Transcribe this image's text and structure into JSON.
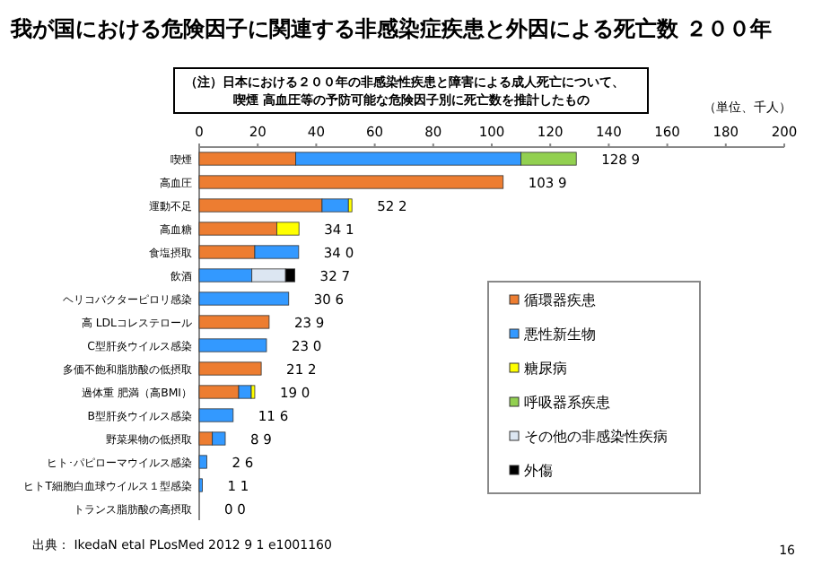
{
  "chart_data": {
    "type": "bar",
    "orientation": "horizontal",
    "stacked": true,
    "title": "我が国における危険因子に関連する非感染症疾患と外因による死亡数 ２００年",
    "subtitle": "（注）日本における２００年の非感染性疾患と障害による成人死亡について、喫煙 高血圧等の予防可能な危険因子別に死亡数を推計したもの",
    "annotations": [
      "（単位、千人）",
      "出典： IkedaN etal PLosMed 2012 9 1 e1001160",
      "16"
    ],
    "categories": [
      "喫煙",
      "高血圧",
      "運動不足",
      "高血糖",
      "食塩摂取",
      "飲酒",
      "ヘリコバクターピロリ感染",
      "高 LDLコレステロール",
      "C型肝炎ウイルス感染",
      "多価不飽和脂肪酸の低摂取",
      "過体重 肥満（高BMI）",
      "B型肝炎ウイルス感染",
      "野菜果物の低摂取",
      "ヒト･パピローマウイルス感染",
      "ヒトT細胞白血球ウイルス１型感染",
      "トランス脂肪酸の高摂取"
    ],
    "series": [
      {
        "name": "循環器疾患",
        "color": "#ed7d31",
        "values": [
          33,
          103.9,
          42,
          26.5,
          19,
          null,
          null,
          23.9,
          null,
          21.2,
          13.5,
          null,
          4.5,
          null,
          null,
          0.0
        ]
      },
      {
        "name": "悪性新生物",
        "color": "#3399ff",
        "values": [
          77,
          null,
          9,
          null,
          15,
          18,
          30.6,
          null,
          23.0,
          null,
          4.3,
          11.6,
          4.4,
          2.6,
          1.1,
          null
        ]
      },
      {
        "name": "糖尿病",
        "color": "#ffff00",
        "values": [
          null,
          null,
          1.2,
          7.6,
          null,
          null,
          null,
          null,
          null,
          null,
          1.2,
          null,
          null,
          null,
          null,
          null
        ]
      },
      {
        "name": "呼吸器系疾患",
        "color": "#92d050",
        "values": [
          18.9,
          null,
          null,
          null,
          null,
          null,
          null,
          null,
          null,
          null,
          null,
          null,
          null,
          null,
          null,
          null
        ]
      },
      {
        "name": "その他の非感染性疾病",
        "color": "#dce6f2",
        "values": [
          null,
          null,
          null,
          null,
          null,
          11.5,
          null,
          null,
          null,
          null,
          null,
          null,
          null,
          null,
          null,
          null
        ]
      },
      {
        "name": "外傷",
        "color": "#000000",
        "values": [
          null,
          null,
          null,
          null,
          null,
          3.2,
          null,
          null,
          null,
          null,
          null,
          null,
          null,
          null,
          null,
          null
        ]
      }
    ],
    "totals": [
      "128 9",
      "103 9",
      "52 2",
      "34 1",
      "34 0",
      "32 7",
      "30 6",
      "23 9",
      "23 0",
      "21 2",
      "19 0",
      "11 6",
      "8 9",
      "2 6",
      "1 1",
      "0 0"
    ],
    "xlim": [
      0,
      200
    ],
    "xticks": [
      0,
      20,
      40,
      60,
      80,
      100,
      120,
      140,
      160,
      180,
      200
    ],
    "legend": "right",
    "grid": false
  }
}
